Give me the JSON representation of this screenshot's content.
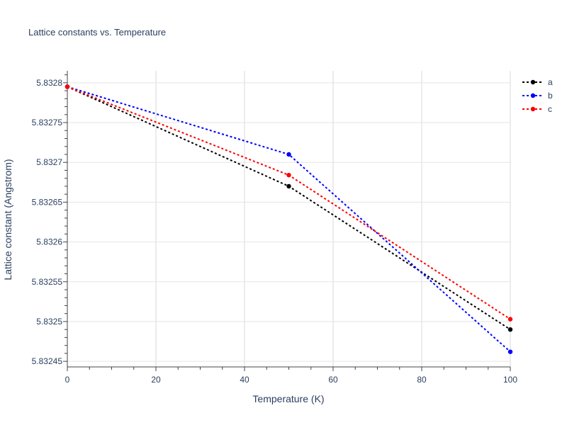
{
  "chart_data": {
    "type": "line",
    "title": "Lattice constants vs. Temperature",
    "xlabel": "Temperature (K)",
    "ylabel": "Lattice constant (Angstrom)",
    "x": [
      0,
      50,
      100
    ],
    "series": [
      {
        "name": "a",
        "color": "#000000",
        "values": [
          5.832795,
          5.83267,
          5.83249
        ]
      },
      {
        "name": "b",
        "color": "#0000ff",
        "values": [
          5.832795,
          5.83271,
          5.832462
        ]
      },
      {
        "name": "c",
        "color": "#ff0000",
        "values": [
          5.832795,
          5.832684,
          5.832503
        ]
      }
    ],
    "xlim": [
      0,
      100
    ],
    "ylim": [
      5.832443,
      5.832815
    ],
    "xticks": [
      {
        "value": 0,
        "label": "0"
      },
      {
        "value": 20,
        "label": "20"
      },
      {
        "value": 40,
        "label": "40"
      },
      {
        "value": 60,
        "label": "60"
      },
      {
        "value": 80,
        "label": "80"
      },
      {
        "value": 100,
        "label": "100"
      }
    ],
    "yticks": [
      {
        "value": 5.83245,
        "label": "5.83245"
      },
      {
        "value": 5.8325,
        "label": "5.8325"
      },
      {
        "value": 5.83255,
        "label": "5.83255"
      },
      {
        "value": 5.8326,
        "label": "5.8326"
      },
      {
        "value": 5.83265,
        "label": "5.83265"
      },
      {
        "value": 5.8327,
        "label": "5.8327"
      },
      {
        "value": 5.83275,
        "label": "5.83275"
      },
      {
        "value": 5.8328,
        "label": "5.8328"
      }
    ],
    "grid": true,
    "legend_position": "top-right",
    "line_style": "dotted"
  }
}
